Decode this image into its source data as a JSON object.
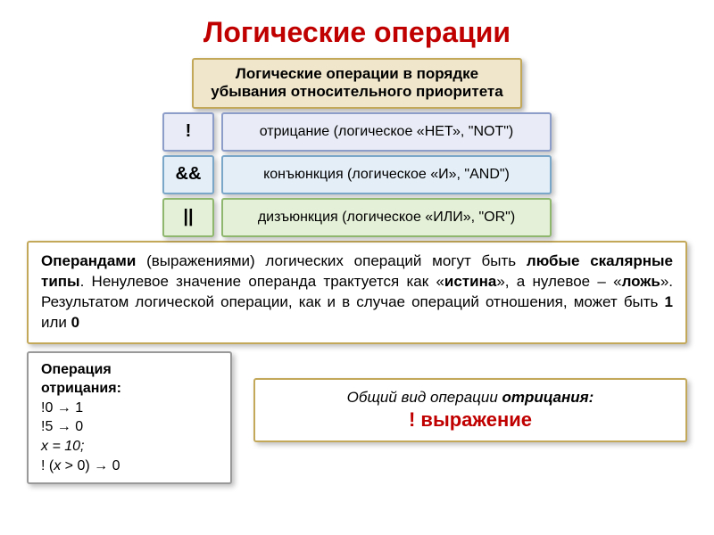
{
  "title": "Логические операции",
  "header_box": "Логические операции в порядке убывания относительного приоритета",
  "rows": [
    {
      "sym": "!",
      "desc": "отрицание (логическое «НЕТ», \"NOT\")"
    },
    {
      "sym": "&&",
      "desc": "конъюнкция (логическое «И», \"AND\")"
    },
    {
      "sym": "||",
      "desc": "дизъюнкция (логическое «ИЛИ», \"OR\")"
    }
  ],
  "main_box": {
    "t1": "Операндами",
    "t2": " (выражениями) логических операций могут быть ",
    "t3": "любые скалярные типы",
    "t4": ". Ненулевое значение операнда трактуется как «",
    "t5": "истина",
    "t6": "», а нулевое – «",
    "t7": "ложь",
    "t8": "». Результатом логической операции, как и в случае операций отношения, может быть ",
    "t9": "1",
    "t10": " или ",
    "t11": "0"
  },
  "neg_box": {
    "hdr1": "Операция",
    "hdr2": "отрицания:",
    "l1a": "!0 ",
    "l1b": " 1",
    "l2a": "!5 ",
    "l2b": " 0",
    "l3": " x = 10;",
    "l4a": "! (",
    "l4b": "x",
    "l4c": " > 0) ",
    "l4d": " 0"
  },
  "form_box": {
    "pre": "Общий вид операции ",
    "em": "отрицания:",
    "expr": "! выражение"
  },
  "colors": {
    "accent": "#c00000",
    "gold_border": "#c3a85a",
    "gold_bg": "#efe6cc"
  }
}
